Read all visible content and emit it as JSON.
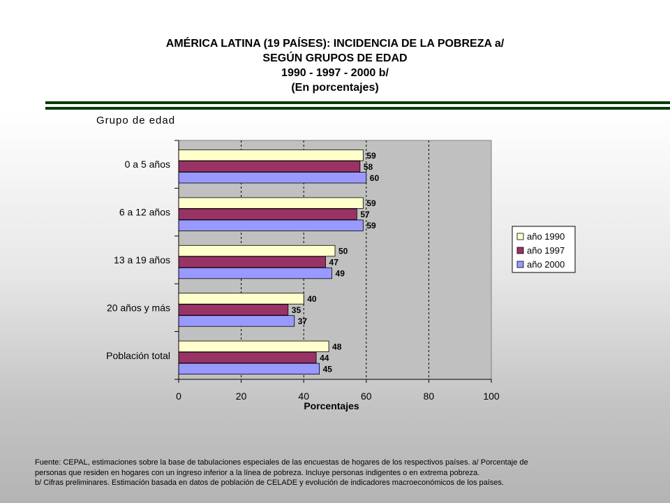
{
  "header": {
    "line1": "AMÉRICA LATINA (19 PAÍSES): INCIDENCIA DE LA POBREZA a/",
    "line2": "SEGÚN GRUPOS DE EDAD",
    "line3": "1990 - 1997 - 2000 b/",
    "line4": "(En porcentajes)"
  },
  "colors": {
    "rule": "#0b3b0b",
    "plot_bg": "#c0c0c0",
    "series": [
      "#ffffcc",
      "#993366",
      "#9999ff"
    ]
  },
  "chart_data": {
    "type": "bar",
    "orientation": "horizontal",
    "ylabel": "Grupo de edad",
    "xlabel": "Porcentajes",
    "categories": [
      "0 a 5 años",
      "6 a 12 años",
      "13 a 19 años",
      "20 años y más",
      "Población total"
    ],
    "series": [
      {
        "name": "año 1990",
        "values": [
          59,
          59,
          50,
          40,
          48
        ]
      },
      {
        "name": "año 1997",
        "values": [
          58,
          57,
          47,
          35,
          44
        ]
      },
      {
        "name": "año 2000",
        "values": [
          60,
          59,
          49,
          37,
          45
        ]
      }
    ],
    "xlim": [
      0,
      100
    ],
    "xticks": [
      0,
      20,
      40,
      60,
      80,
      100
    ],
    "grid": "vertical dashed",
    "legend_position": "right",
    "data_labels": true
  },
  "footnote": {
    "line1": "Fuente: CEPAL, estimaciones sobre la base de tabulaciones especiales de las encuestas de hogares de los respectivos países. a/ Porcentaje de",
    "line2": "personas que residen en hogares con un ingreso inferior a la línea de pobreza. Incluye personas indigentes o en extrema pobreza.",
    "line3": "b/ Cifras preliminares. Estimación basada en datos de población de CELADE y evolución de indicadores macroeconómicos de los países."
  }
}
